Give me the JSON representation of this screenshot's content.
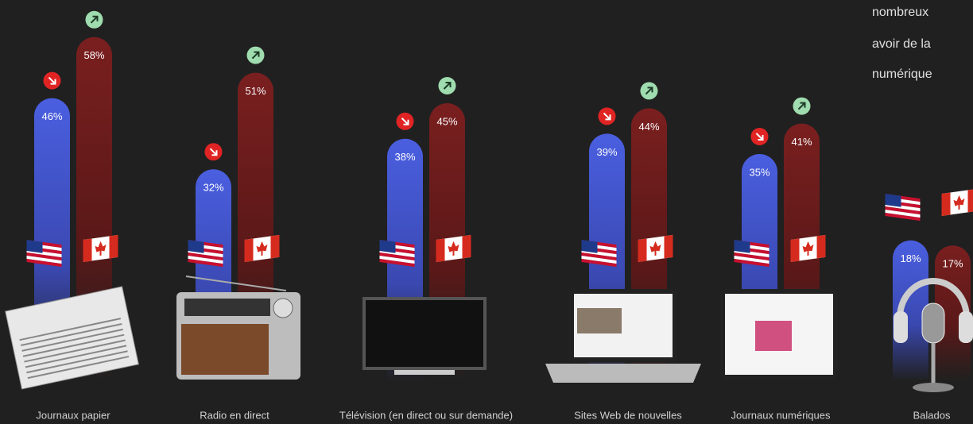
{
  "chart_data": {
    "type": "bar",
    "categories": [
      "Journaux papier",
      "Radio en direct",
      "Télévision (en direct ou sur demande)",
      "Sites Web de nouvelles",
      "Journaux numériques",
      "Balados"
    ],
    "series": [
      {
        "color": "#4a5fe0",
        "values": [
          46,
          32,
          38,
          39,
          35,
          18
        ],
        "value_labels": [
          "46%",
          "32%",
          "38%",
          "39%",
          "35%",
          "18%"
        ],
        "trends": [
          "down",
          "down",
          "down",
          "down",
          "down",
          null
        ]
      },
      {
        "color": "#7a1f1f",
        "values": [
          58,
          51,
          45,
          44,
          41,
          17
        ],
        "value_labels": [
          "58%",
          "51%",
          "45%",
          "44%",
          "41%",
          "17%"
        ],
        "trends": [
          "up",
          "up",
          "up",
          "up",
          "up",
          null
        ]
      }
    ],
    "annotation_lines": [
      "nombreux",
      "avoir de la",
      "numérique"
    ]
  }
}
